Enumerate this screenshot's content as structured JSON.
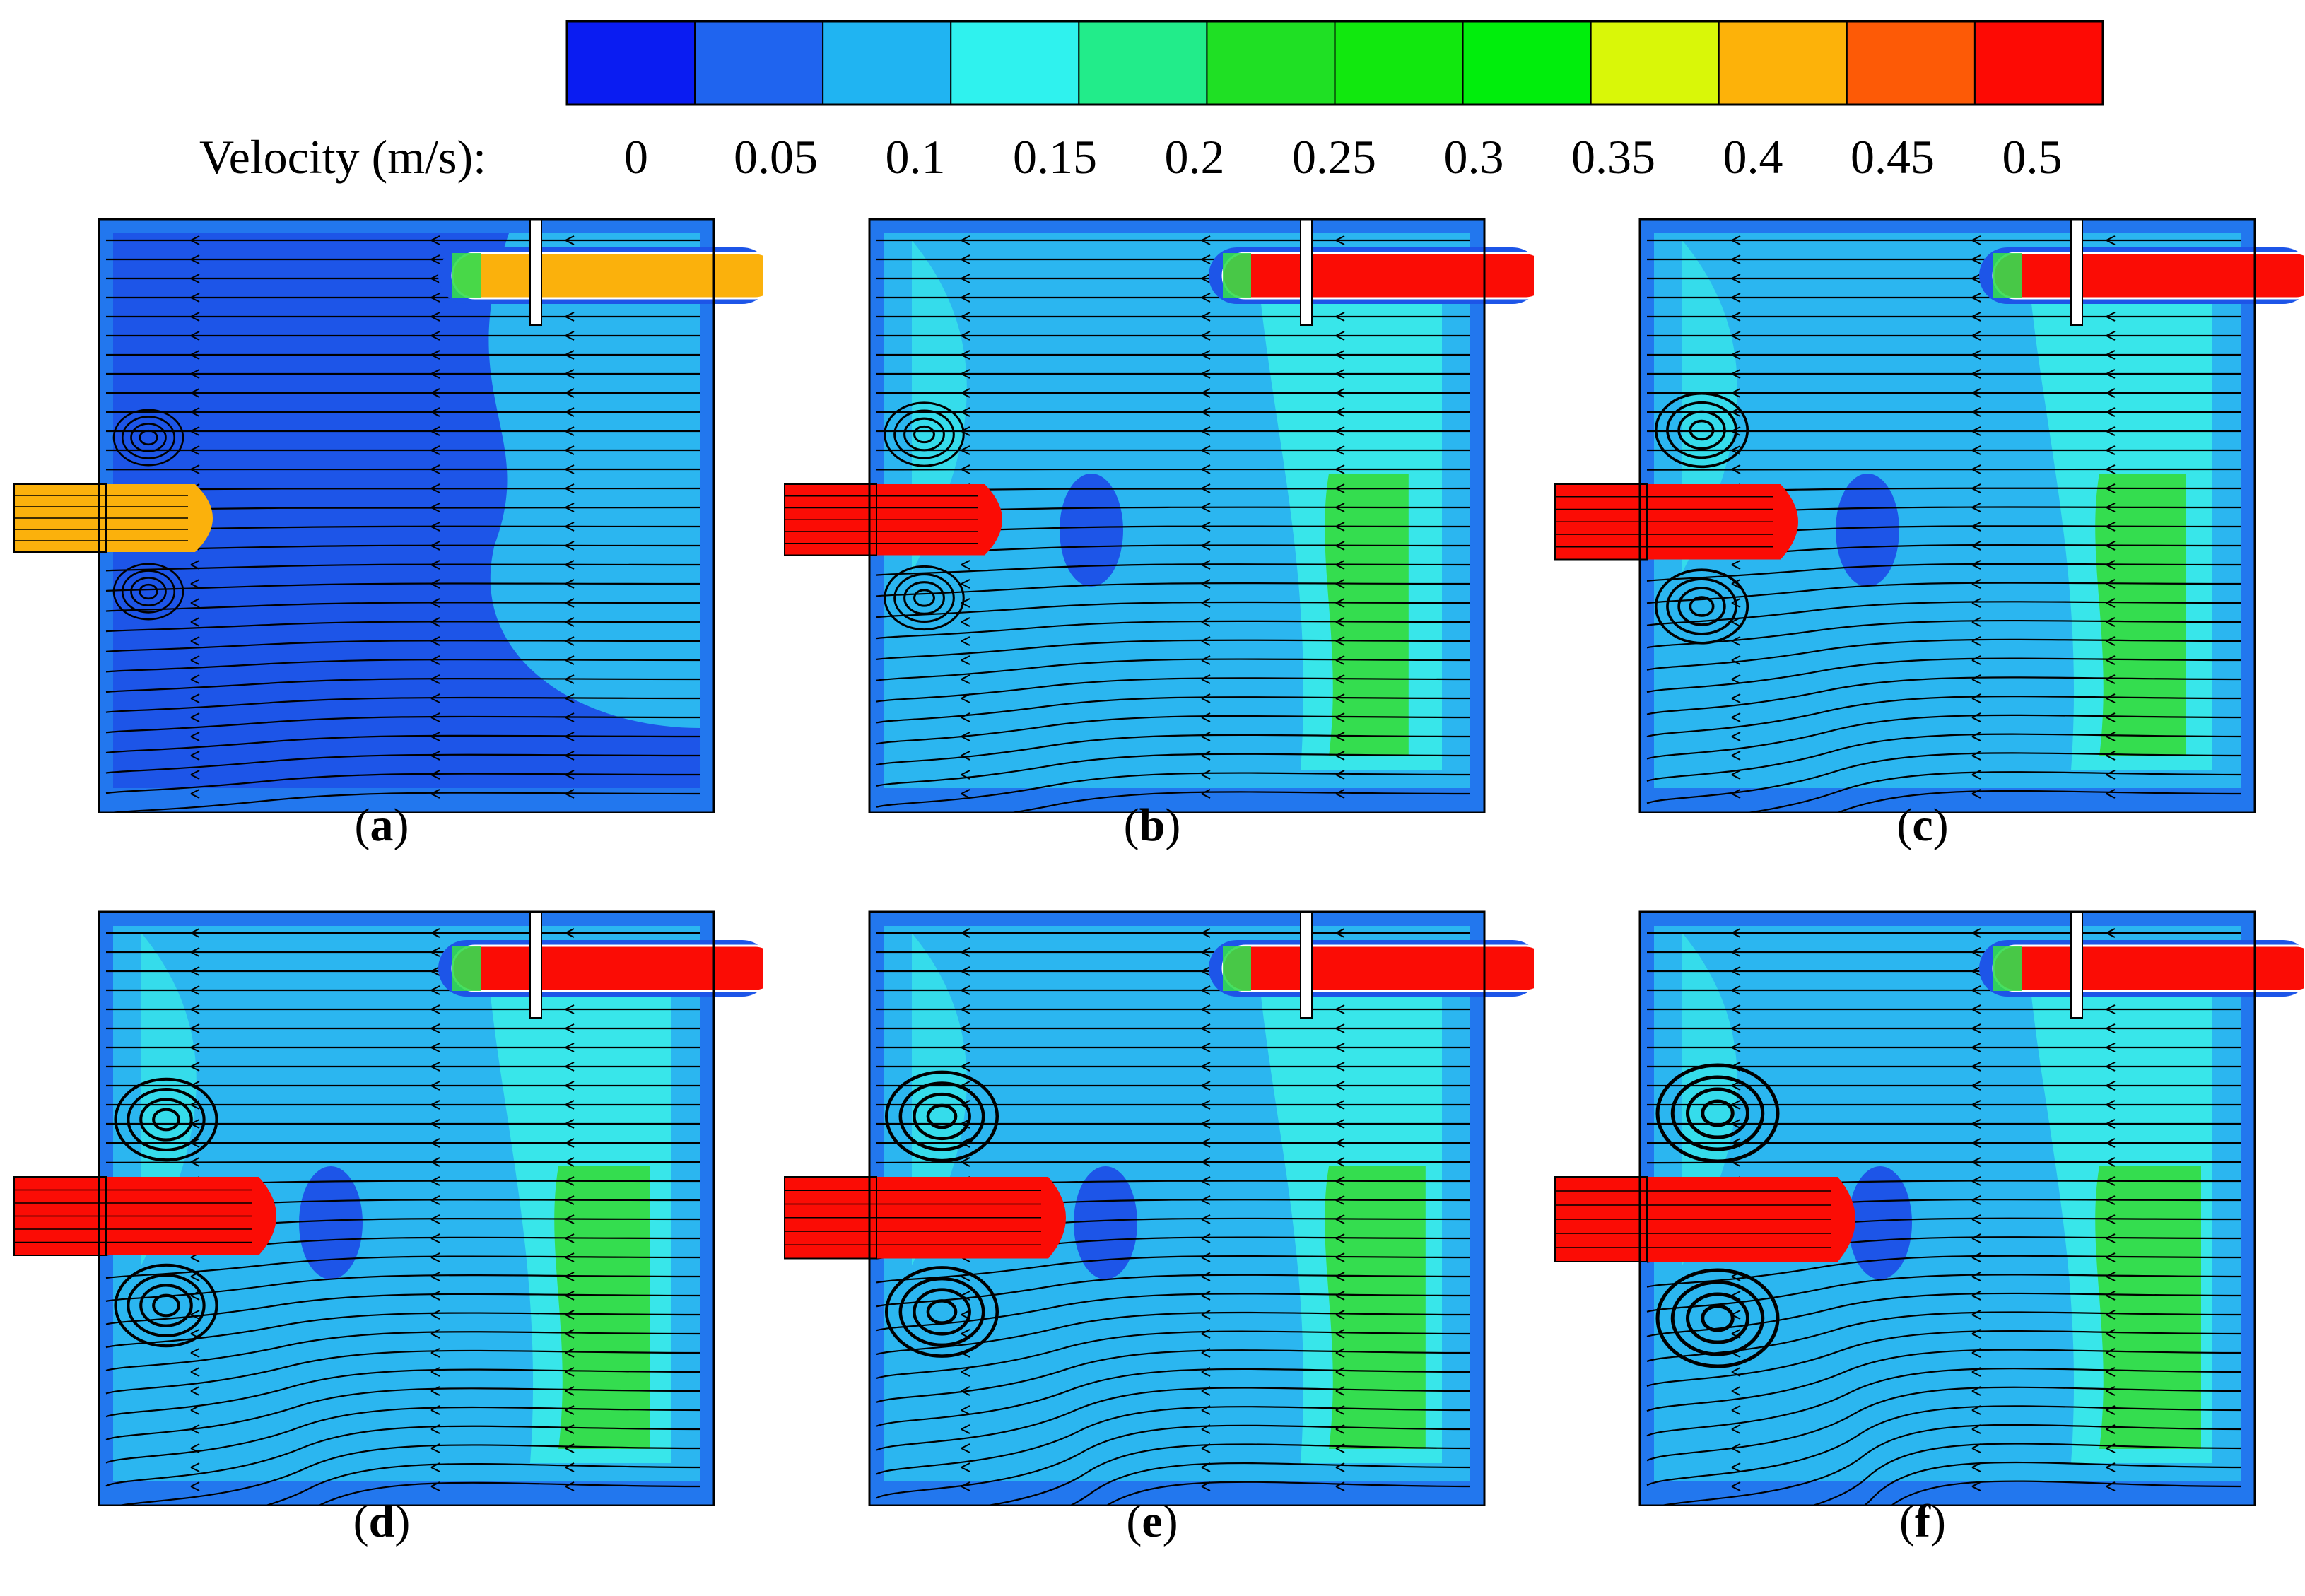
{
  "legend": {
    "label": "Velocity (m/s):",
    "ticks": [
      "0",
      "0.05",
      "0.1",
      "0.15",
      "0.2",
      "0.25",
      "0.3",
      "0.35",
      "0.4",
      "0.45",
      "0.5"
    ],
    "colors": [
      "#0a1cf2",
      "#1f64ef",
      "#20b4f2",
      "#2ff2ee",
      "#22ec8a",
      "#1fe024",
      "#11e80e",
      "#00ee0c",
      "#d9f708",
      "#fdb209",
      "#fd5a06",
      "#fd0a04"
    ]
  },
  "palette": {
    "base_blue": "#2277ee",
    "dark_blue": "#1d55e8",
    "light_blue": "#2bb6f0",
    "cyan": "#38e6ea",
    "green": "#34dd4f",
    "jet_red": "#fb0c05",
    "jet_orange": "#fbb10c",
    "jet_yellow": "#e6f10f",
    "streamline": "#000000"
  },
  "panels": [
    {
      "id": "a",
      "label": "a",
      "jet_level": 0.42,
      "vortex_strength": 0.2
    },
    {
      "id": "b",
      "label": "b",
      "jet_level": 0.5,
      "vortex_strength": 0.35
    },
    {
      "id": "c",
      "label": "c",
      "jet_level": 0.5,
      "vortex_strength": 0.55
    },
    {
      "id": "d",
      "label": "d",
      "jet_level": 0.5,
      "vortex_strength": 0.7
    },
    {
      "id": "e",
      "label": "e",
      "jet_level": 0.5,
      "vortex_strength": 0.85
    },
    {
      "id": "f",
      "label": "f",
      "jet_level": 0.5,
      "vortex_strength": 1.0
    }
  ]
}
